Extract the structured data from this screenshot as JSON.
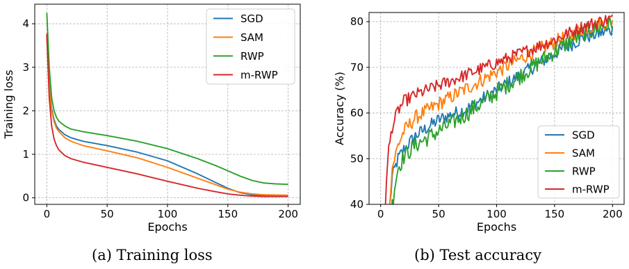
{
  "chart_data": [
    {
      "type": "line",
      "caption": "(a) Training loss",
      "xlabel": "Epochs",
      "ylabel": "Training loss",
      "xlim": [
        -10,
        210
      ],
      "ylim": [
        -0.15,
        4.45
      ],
      "xticks": [
        0,
        50,
        100,
        150,
        200
      ],
      "yticks": [
        0,
        1,
        2,
        3,
        4
      ],
      "grid": true,
      "legend_position": "top-right",
      "series": [
        {
          "name": "SGD",
          "color": "#1f77b4",
          "noise": 0.0,
          "points": [
            [
              0,
              3.75
            ],
            [
              2,
              2.6
            ],
            [
              4,
              2.05
            ],
            [
              6,
              1.8
            ],
            [
              8,
              1.65
            ],
            [
              10,
              1.57
            ],
            [
              15,
              1.45
            ],
            [
              20,
              1.38
            ],
            [
              30,
              1.3
            ],
            [
              50,
              1.2
            ],
            [
              75,
              1.05
            ],
            [
              100,
              0.85
            ],
            [
              125,
              0.55
            ],
            [
              140,
              0.35
            ],
            [
              150,
              0.22
            ],
            [
              160,
              0.12
            ],
            [
              170,
              0.07
            ],
            [
              180,
              0.05
            ],
            [
              200,
              0.05
            ]
          ]
        },
        {
          "name": "SAM",
          "color": "#ff7f0e",
          "noise": 0.0,
          "points": [
            [
              0,
              3.78
            ],
            [
              2,
              2.55
            ],
            [
              4,
              2.0
            ],
            [
              6,
              1.75
            ],
            [
              8,
              1.6
            ],
            [
              10,
              1.52
            ],
            [
              15,
              1.38
            ],
            [
              20,
              1.3
            ],
            [
              30,
              1.2
            ],
            [
              50,
              1.08
            ],
            [
              75,
              0.92
            ],
            [
              100,
              0.7
            ],
            [
              125,
              0.45
            ],
            [
              140,
              0.3
            ],
            [
              150,
              0.2
            ],
            [
              160,
              0.13
            ],
            [
              170,
              0.09
            ],
            [
              180,
              0.07
            ],
            [
              200,
              0.06
            ]
          ]
        },
        {
          "name": "RWP",
          "color": "#2ca02c",
          "noise": 0.0,
          "points": [
            [
              0,
              4.25
            ],
            [
              2,
              3.0
            ],
            [
              4,
              2.3
            ],
            [
              6,
              2.0
            ],
            [
              8,
              1.85
            ],
            [
              10,
              1.76
            ],
            [
              15,
              1.65
            ],
            [
              20,
              1.58
            ],
            [
              30,
              1.52
            ],
            [
              50,
              1.43
            ],
            [
              75,
              1.3
            ],
            [
              100,
              1.13
            ],
            [
              125,
              0.9
            ],
            [
              140,
              0.74
            ],
            [
              150,
              0.62
            ],
            [
              160,
              0.5
            ],
            [
              170,
              0.4
            ],
            [
              180,
              0.34
            ],
            [
              190,
              0.32
            ],
            [
              200,
              0.31
            ]
          ]
        },
        {
          "name": "m-RWP",
          "color": "#d62728",
          "noise": 0.0,
          "points": [
            [
              0,
              3.76
            ],
            [
              2,
              2.3
            ],
            [
              4,
              1.65
            ],
            [
              6,
              1.35
            ],
            [
              8,
              1.2
            ],
            [
              10,
              1.1
            ],
            [
              15,
              0.97
            ],
            [
              20,
              0.9
            ],
            [
              30,
              0.82
            ],
            [
              50,
              0.7
            ],
            [
              75,
              0.55
            ],
            [
              100,
              0.38
            ],
            [
              125,
              0.22
            ],
            [
              140,
              0.14
            ],
            [
              150,
              0.09
            ],
            [
              160,
              0.06
            ],
            [
              170,
              0.04
            ],
            [
              180,
              0.03
            ],
            [
              200,
              0.03
            ]
          ]
        }
      ]
    },
    {
      "type": "line",
      "caption": "(b) Test accuracy",
      "xlabel": "Epochs",
      "ylabel": "Accuracy (%)",
      "xlim": [
        -10,
        210
      ],
      "ylim": [
        40,
        82
      ],
      "xticks": [
        0,
        50,
        100,
        150,
        200
      ],
      "yticks": [
        40,
        50,
        60,
        70,
        80
      ],
      "grid": true,
      "legend_position": "lower-right",
      "series": [
        {
          "name": "SGD",
          "color": "#1f77b4",
          "noise": 1.5,
          "points": [
            [
              5,
              30
            ],
            [
              8,
              40
            ],
            [
              10,
              46
            ],
            [
              15,
              50
            ],
            [
              20,
              52
            ],
            [
              30,
              55
            ],
            [
              50,
              58.5
            ],
            [
              75,
              61
            ],
            [
              100,
              65
            ],
            [
              125,
              69
            ],
            [
              150,
              73
            ],
            [
              175,
              76.5
            ],
            [
              200,
              78.2
            ]
          ]
        },
        {
          "name": "SAM",
          "color": "#ff7f0e",
          "noise": 1.6,
          "points": [
            [
              5,
              32
            ],
            [
              8,
              42
            ],
            [
              10,
              48
            ],
            [
              15,
              53
            ],
            [
              20,
              56
            ],
            [
              30,
              59
            ],
            [
              50,
              62
            ],
            [
              75,
              65.5
            ],
            [
              100,
              69
            ],
            [
              125,
              72.5
            ],
            [
              150,
              75.5
            ],
            [
              175,
              78.5
            ],
            [
              200,
              80.3
            ]
          ]
        },
        {
          "name": "RWP",
          "color": "#2ca02c",
          "noise": 1.9,
          "points": [
            [
              6,
              28
            ],
            [
              9,
              38
            ],
            [
              12,
              44
            ],
            [
              15,
              48
            ],
            [
              20,
              50.5
            ],
            [
              30,
              53
            ],
            [
              50,
              56
            ],
            [
              75,
              60
            ],
            [
              100,
              64.5
            ],
            [
              125,
              69
            ],
            [
              150,
              73.5
            ],
            [
              175,
              77.5
            ],
            [
              200,
              79.7
            ]
          ]
        },
        {
          "name": "m-RWP",
          "color": "#d62728",
          "noise": 1.4,
          "points": [
            [
              3,
              33
            ],
            [
              5,
              45
            ],
            [
              7,
              52
            ],
            [
              10,
              57
            ],
            [
              15,
              60.5
            ],
            [
              20,
              62.5
            ],
            [
              30,
              64
            ],
            [
              50,
              66
            ],
            [
              75,
              68.5
            ],
            [
              100,
              71
            ],
            [
              125,
              73.5
            ],
            [
              150,
              76
            ],
            [
              175,
              79
            ],
            [
              200,
              80.8
            ]
          ]
        }
      ]
    }
  ]
}
